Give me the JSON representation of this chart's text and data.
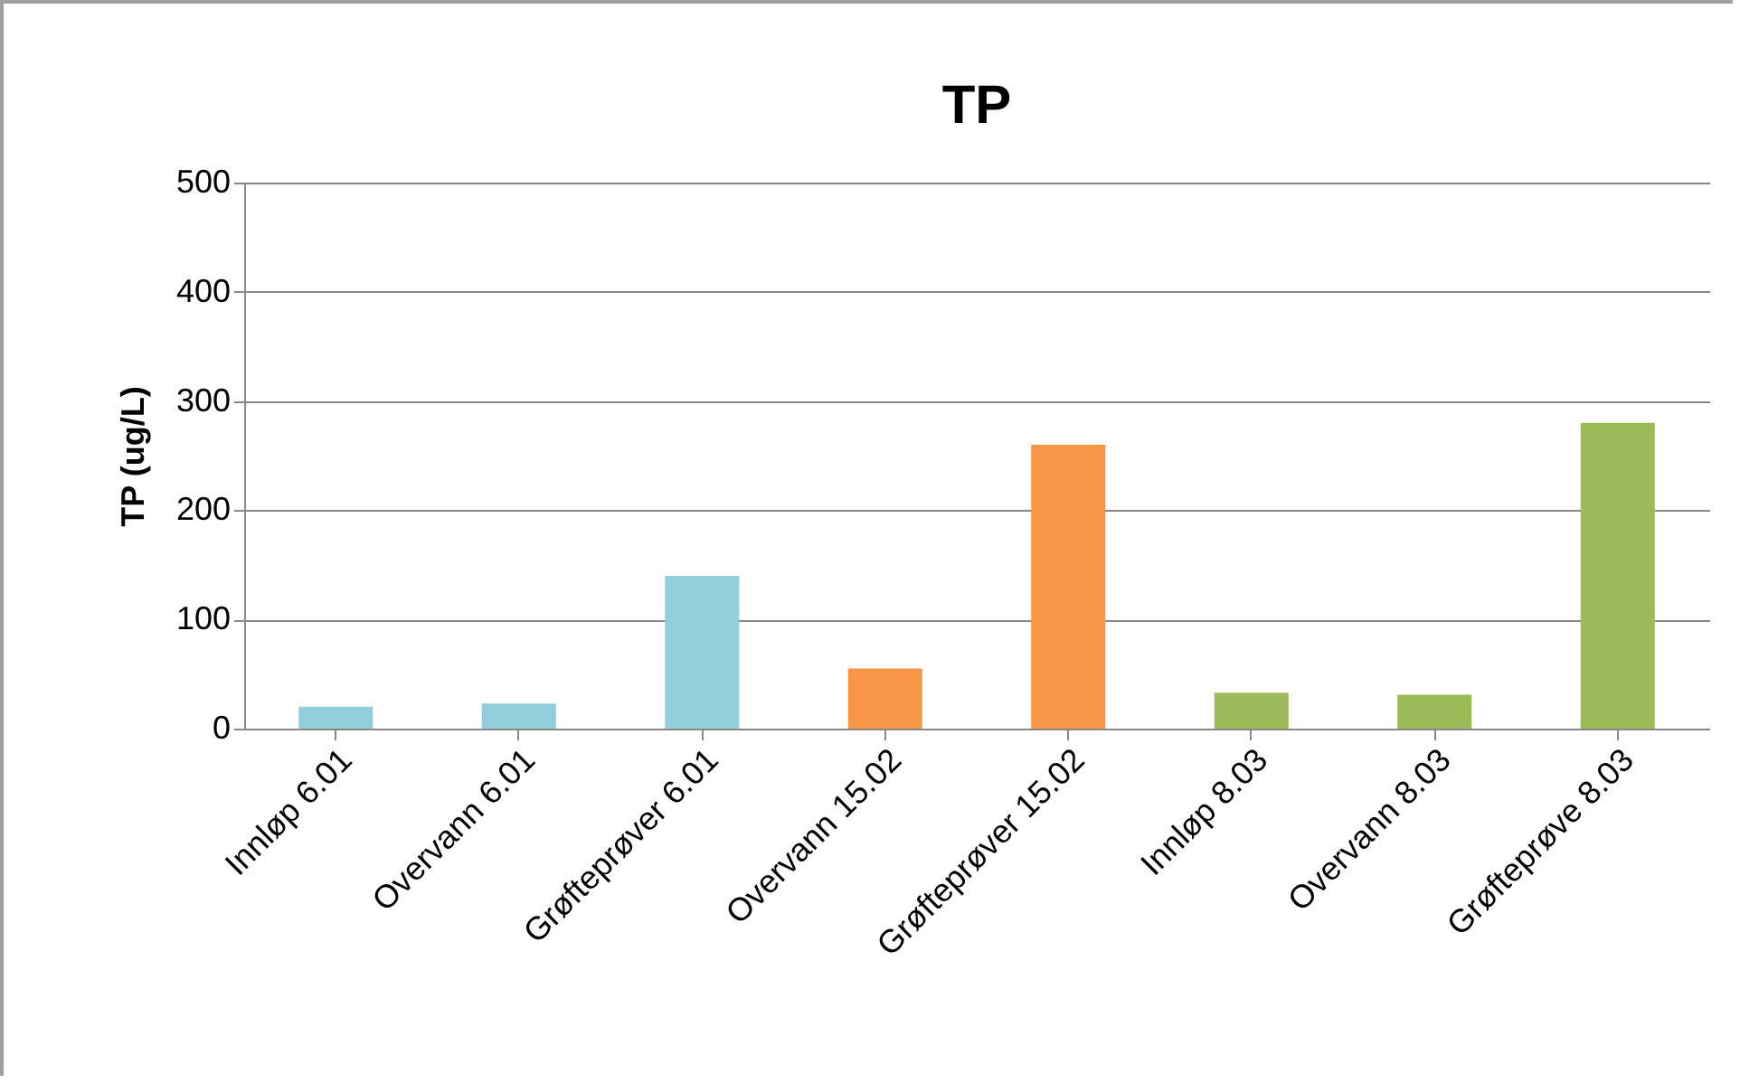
{
  "chart_data": {
    "type": "bar",
    "title": "TP",
    "ylabel": "TP (ug/L)",
    "categories": [
      "Innløp 6.01",
      "Overvann 6.01",
      "Grøfteprøver 6.01",
      "Overvann 15.02",
      "Grøfteprøver 15.02",
      "Innløp 8.03",
      "Overvann 8.03",
      "Grøfteprøve 8.03"
    ],
    "values": [
      20,
      23,
      140,
      55,
      260,
      33,
      31,
      280
    ],
    "colors": [
      "#92cddc",
      "#92cddc",
      "#92cddc",
      "#f79646",
      "#f79646",
      "#9bbb59",
      "#9bbb59",
      "#9bbb59"
    ],
    "ylim": [
      0,
      500
    ],
    "yticks": [
      0,
      100,
      200,
      300,
      400,
      500
    ],
    "grid": "y",
    "legend": false
  }
}
